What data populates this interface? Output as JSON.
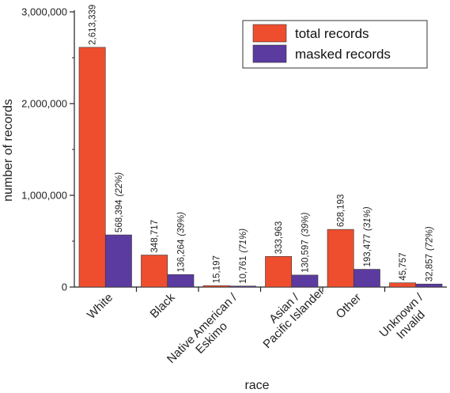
{
  "chart_data": {
    "type": "bar",
    "title": "",
    "xlabel": "race",
    "ylabel": "number of records",
    "ylim": [
      0,
      3000000
    ],
    "yticks": [
      {
        "value": 0,
        "label": "0"
      },
      {
        "value": 1000000,
        "label": "1,000,000"
      },
      {
        "value": 2000000,
        "label": "2,000,000"
      },
      {
        "value": 3000000,
        "label": "3,000,000"
      }
    ],
    "categories": [
      [
        "White"
      ],
      [
        "Black"
      ],
      [
        "Native American /",
        "Eskimo"
      ],
      [
        "Asian /",
        "Pacific Islander"
      ],
      [
        "Other"
      ],
      [
        "Unknown /",
        "Invalid"
      ]
    ],
    "series": [
      {
        "name": "total records",
        "color": "#EE4E2E",
        "values": [
          2613339,
          348717,
          15197,
          333963,
          628193,
          45757
        ],
        "labels": [
          "2,613,339",
          "348,717",
          "15,197",
          "333,963",
          "628,193",
          "45,757"
        ]
      },
      {
        "name": "masked records",
        "color": "#5B3BA0",
        "values": [
          568394,
          136264,
          10761,
          130597,
          193477,
          32857
        ],
        "labels": [
          "568,394",
          "136,264",
          "10,761",
          "130,597",
          "193,477",
          "32,857"
        ],
        "percent_labels": [
          "(22%)",
          "(39%)",
          "(71%)",
          "(39%)",
          "(31%)",
          "(72%)"
        ]
      }
    ],
    "legend_position": "top-right",
    "grid": false
  }
}
